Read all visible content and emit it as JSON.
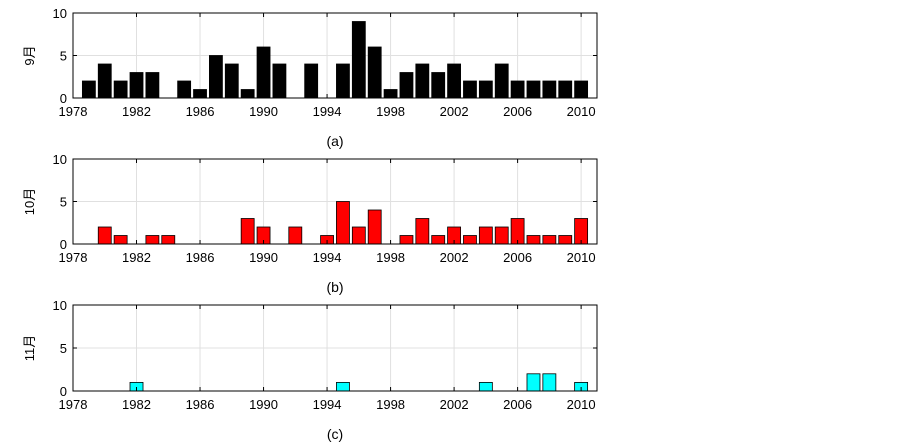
{
  "chart_data": [
    {
      "type": "bar",
      "panel_label": "(a)",
      "ylabel": "9月",
      "color": "#000000",
      "ylim": [
        0,
        10
      ],
      "yticks": [
        0,
        5,
        10
      ],
      "xlim": [
        1978,
        2011
      ],
      "xticks": [
        1978,
        1982,
        1986,
        1990,
        1994,
        1998,
        2002,
        2006,
        2010
      ],
      "grid": true,
      "x": [
        1979,
        1980,
        1981,
        1982,
        1983,
        1984,
        1985,
        1986,
        1987,
        1988,
        1989,
        1990,
        1991,
        1992,
        1993,
        1994,
        1995,
        1996,
        1997,
        1998,
        1999,
        2000,
        2001,
        2002,
        2003,
        2004,
        2005,
        2006,
        2007,
        2008,
        2009,
        2010
      ],
      "values": [
        2,
        4,
        2,
        3,
        3,
        0,
        2,
        1,
        5,
        4,
        1,
        6,
        4,
        0,
        4,
        0,
        4,
        9,
        6,
        1,
        3,
        4,
        3,
        4,
        2,
        2,
        4,
        2,
        2,
        2,
        2,
        2
      ]
    },
    {
      "type": "bar",
      "panel_label": "(b)",
      "ylabel": "10月",
      "color": "#ff0000",
      "ylim": [
        0,
        10
      ],
      "yticks": [
        0,
        5,
        10
      ],
      "xlim": [
        1978,
        2011
      ],
      "xticks": [
        1978,
        1982,
        1986,
        1990,
        1994,
        1998,
        2002,
        2006,
        2010
      ],
      "grid": true,
      "x": [
        1979,
        1980,
        1981,
        1982,
        1983,
        1984,
        1985,
        1986,
        1987,
        1988,
        1989,
        1990,
        1991,
        1992,
        1993,
        1994,
        1995,
        1996,
        1997,
        1998,
        1999,
        2000,
        2001,
        2002,
        2003,
        2004,
        2005,
        2006,
        2007,
        2008,
        2009,
        2010
      ],
      "values": [
        0,
        2,
        1,
        0,
        1,
        1,
        0,
        0,
        0,
        0,
        3,
        2,
        0,
        2,
        0,
        1,
        5,
        2,
        4,
        0,
        1,
        3,
        1,
        2,
        1,
        2,
        2,
        3,
        1,
        1,
        1,
        3
      ]
    },
    {
      "type": "bar",
      "panel_label": "(c)",
      "ylabel": "11月",
      "color": "#00ffff",
      "ylim": [
        0,
        10
      ],
      "yticks": [
        0,
        5,
        10
      ],
      "xlim": [
        1978,
        2011
      ],
      "xticks": [
        1978,
        1982,
        1986,
        1990,
        1994,
        1998,
        2002,
        2006,
        2010
      ],
      "grid": true,
      "x": [
        1979,
        1980,
        1981,
        1982,
        1983,
        1984,
        1985,
        1986,
        1987,
        1988,
        1989,
        1990,
        1991,
        1992,
        1993,
        1994,
        1995,
        1996,
        1997,
        1998,
        1999,
        2000,
        2001,
        2002,
        2003,
        2004,
        2005,
        2006,
        2007,
        2008,
        2009,
        2010
      ],
      "values": [
        0,
        0,
        0,
        1,
        0,
        0,
        0,
        0,
        0,
        0,
        0,
        0,
        0,
        0,
        0,
        0,
        1,
        0,
        0,
        0,
        0,
        0,
        0,
        0,
        0,
        1,
        0,
        0,
        2,
        2,
        0,
        1
      ]
    }
  ]
}
